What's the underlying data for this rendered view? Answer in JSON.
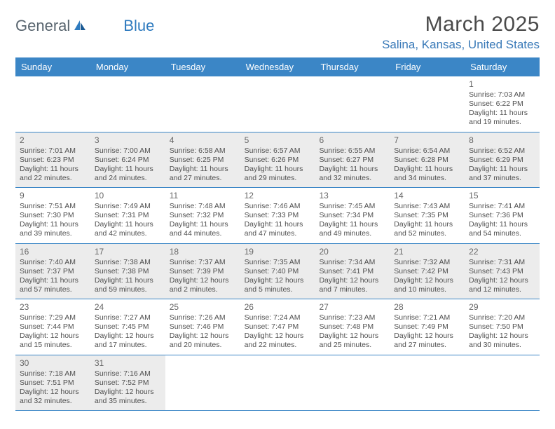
{
  "brand": {
    "part1": "General",
    "part2": "Blue"
  },
  "title": "March 2025",
  "location": "Salina, Kansas, United States",
  "weekdays": [
    "Sunday",
    "Monday",
    "Tuesday",
    "Wednesday",
    "Thursday",
    "Friday",
    "Saturday"
  ],
  "colors": {
    "headerBar": "#3b86c6",
    "locationText": "#3a7ab8",
    "shadedCell": "#ececec",
    "rowBorder": "#3b86c6",
    "bodyText": "#505050"
  },
  "weeks": [
    {
      "cells": [
        {
          "empty": true
        },
        {
          "empty": true
        },
        {
          "empty": true
        },
        {
          "empty": true
        },
        {
          "empty": true
        },
        {
          "empty": true
        },
        {
          "day": "1",
          "sunrise": "Sunrise: 7:03 AM",
          "sunset": "Sunset: 6:22 PM",
          "daylight": "Daylight: 11 hours and 19 minutes.",
          "shaded": false
        }
      ]
    },
    {
      "cells": [
        {
          "day": "2",
          "sunrise": "Sunrise: 7:01 AM",
          "sunset": "Sunset: 6:23 PM",
          "daylight": "Daylight: 11 hours and 22 minutes.",
          "shaded": true
        },
        {
          "day": "3",
          "sunrise": "Sunrise: 7:00 AM",
          "sunset": "Sunset: 6:24 PM",
          "daylight": "Daylight: 11 hours and 24 minutes.",
          "shaded": true
        },
        {
          "day": "4",
          "sunrise": "Sunrise: 6:58 AM",
          "sunset": "Sunset: 6:25 PM",
          "daylight": "Daylight: 11 hours and 27 minutes.",
          "shaded": true
        },
        {
          "day": "5",
          "sunrise": "Sunrise: 6:57 AM",
          "sunset": "Sunset: 6:26 PM",
          "daylight": "Daylight: 11 hours and 29 minutes.",
          "shaded": true
        },
        {
          "day": "6",
          "sunrise": "Sunrise: 6:55 AM",
          "sunset": "Sunset: 6:27 PM",
          "daylight": "Daylight: 11 hours and 32 minutes.",
          "shaded": true
        },
        {
          "day": "7",
          "sunrise": "Sunrise: 6:54 AM",
          "sunset": "Sunset: 6:28 PM",
          "daylight": "Daylight: 11 hours and 34 minutes.",
          "shaded": true
        },
        {
          "day": "8",
          "sunrise": "Sunrise: 6:52 AM",
          "sunset": "Sunset: 6:29 PM",
          "daylight": "Daylight: 11 hours and 37 minutes.",
          "shaded": true
        }
      ]
    },
    {
      "cells": [
        {
          "day": "9",
          "sunrise": "Sunrise: 7:51 AM",
          "sunset": "Sunset: 7:30 PM",
          "daylight": "Daylight: 11 hours and 39 minutes.",
          "shaded": false
        },
        {
          "day": "10",
          "sunrise": "Sunrise: 7:49 AM",
          "sunset": "Sunset: 7:31 PM",
          "daylight": "Daylight: 11 hours and 42 minutes.",
          "shaded": false
        },
        {
          "day": "11",
          "sunrise": "Sunrise: 7:48 AM",
          "sunset": "Sunset: 7:32 PM",
          "daylight": "Daylight: 11 hours and 44 minutes.",
          "shaded": false
        },
        {
          "day": "12",
          "sunrise": "Sunrise: 7:46 AM",
          "sunset": "Sunset: 7:33 PM",
          "daylight": "Daylight: 11 hours and 47 minutes.",
          "shaded": false
        },
        {
          "day": "13",
          "sunrise": "Sunrise: 7:45 AM",
          "sunset": "Sunset: 7:34 PM",
          "daylight": "Daylight: 11 hours and 49 minutes.",
          "shaded": false
        },
        {
          "day": "14",
          "sunrise": "Sunrise: 7:43 AM",
          "sunset": "Sunset: 7:35 PM",
          "daylight": "Daylight: 11 hours and 52 minutes.",
          "shaded": false
        },
        {
          "day": "15",
          "sunrise": "Sunrise: 7:41 AM",
          "sunset": "Sunset: 7:36 PM",
          "daylight": "Daylight: 11 hours and 54 minutes.",
          "shaded": false
        }
      ]
    },
    {
      "cells": [
        {
          "day": "16",
          "sunrise": "Sunrise: 7:40 AM",
          "sunset": "Sunset: 7:37 PM",
          "daylight": "Daylight: 11 hours and 57 minutes.",
          "shaded": true
        },
        {
          "day": "17",
          "sunrise": "Sunrise: 7:38 AM",
          "sunset": "Sunset: 7:38 PM",
          "daylight": "Daylight: 11 hours and 59 minutes.",
          "shaded": true
        },
        {
          "day": "18",
          "sunrise": "Sunrise: 7:37 AM",
          "sunset": "Sunset: 7:39 PM",
          "daylight": "Daylight: 12 hours and 2 minutes.",
          "shaded": true
        },
        {
          "day": "19",
          "sunrise": "Sunrise: 7:35 AM",
          "sunset": "Sunset: 7:40 PM",
          "daylight": "Daylight: 12 hours and 5 minutes.",
          "shaded": true
        },
        {
          "day": "20",
          "sunrise": "Sunrise: 7:34 AM",
          "sunset": "Sunset: 7:41 PM",
          "daylight": "Daylight: 12 hours and 7 minutes.",
          "shaded": true
        },
        {
          "day": "21",
          "sunrise": "Sunrise: 7:32 AM",
          "sunset": "Sunset: 7:42 PM",
          "daylight": "Daylight: 12 hours and 10 minutes.",
          "shaded": true
        },
        {
          "day": "22",
          "sunrise": "Sunrise: 7:31 AM",
          "sunset": "Sunset: 7:43 PM",
          "daylight": "Daylight: 12 hours and 12 minutes.",
          "shaded": true
        }
      ]
    },
    {
      "cells": [
        {
          "day": "23",
          "sunrise": "Sunrise: 7:29 AM",
          "sunset": "Sunset: 7:44 PM",
          "daylight": "Daylight: 12 hours and 15 minutes.",
          "shaded": false
        },
        {
          "day": "24",
          "sunrise": "Sunrise: 7:27 AM",
          "sunset": "Sunset: 7:45 PM",
          "daylight": "Daylight: 12 hours and 17 minutes.",
          "shaded": false
        },
        {
          "day": "25",
          "sunrise": "Sunrise: 7:26 AM",
          "sunset": "Sunset: 7:46 PM",
          "daylight": "Daylight: 12 hours and 20 minutes.",
          "shaded": false
        },
        {
          "day": "26",
          "sunrise": "Sunrise: 7:24 AM",
          "sunset": "Sunset: 7:47 PM",
          "daylight": "Daylight: 12 hours and 22 minutes.",
          "shaded": false
        },
        {
          "day": "27",
          "sunrise": "Sunrise: 7:23 AM",
          "sunset": "Sunset: 7:48 PM",
          "daylight": "Daylight: 12 hours and 25 minutes.",
          "shaded": false
        },
        {
          "day": "28",
          "sunrise": "Sunrise: 7:21 AM",
          "sunset": "Sunset: 7:49 PM",
          "daylight": "Daylight: 12 hours and 27 minutes.",
          "shaded": false
        },
        {
          "day": "29",
          "sunrise": "Sunrise: 7:20 AM",
          "sunset": "Sunset: 7:50 PM",
          "daylight": "Daylight: 12 hours and 30 minutes.",
          "shaded": false
        }
      ]
    },
    {
      "cells": [
        {
          "day": "30",
          "sunrise": "Sunrise: 7:18 AM",
          "sunset": "Sunset: 7:51 PM",
          "daylight": "Daylight: 12 hours and 32 minutes.",
          "shaded": true
        },
        {
          "day": "31",
          "sunrise": "Sunrise: 7:16 AM",
          "sunset": "Sunset: 7:52 PM",
          "daylight": "Daylight: 12 hours and 35 minutes.",
          "shaded": true
        },
        {
          "empty": true
        },
        {
          "empty": true
        },
        {
          "empty": true
        },
        {
          "empty": true
        },
        {
          "empty": true
        }
      ]
    }
  ]
}
